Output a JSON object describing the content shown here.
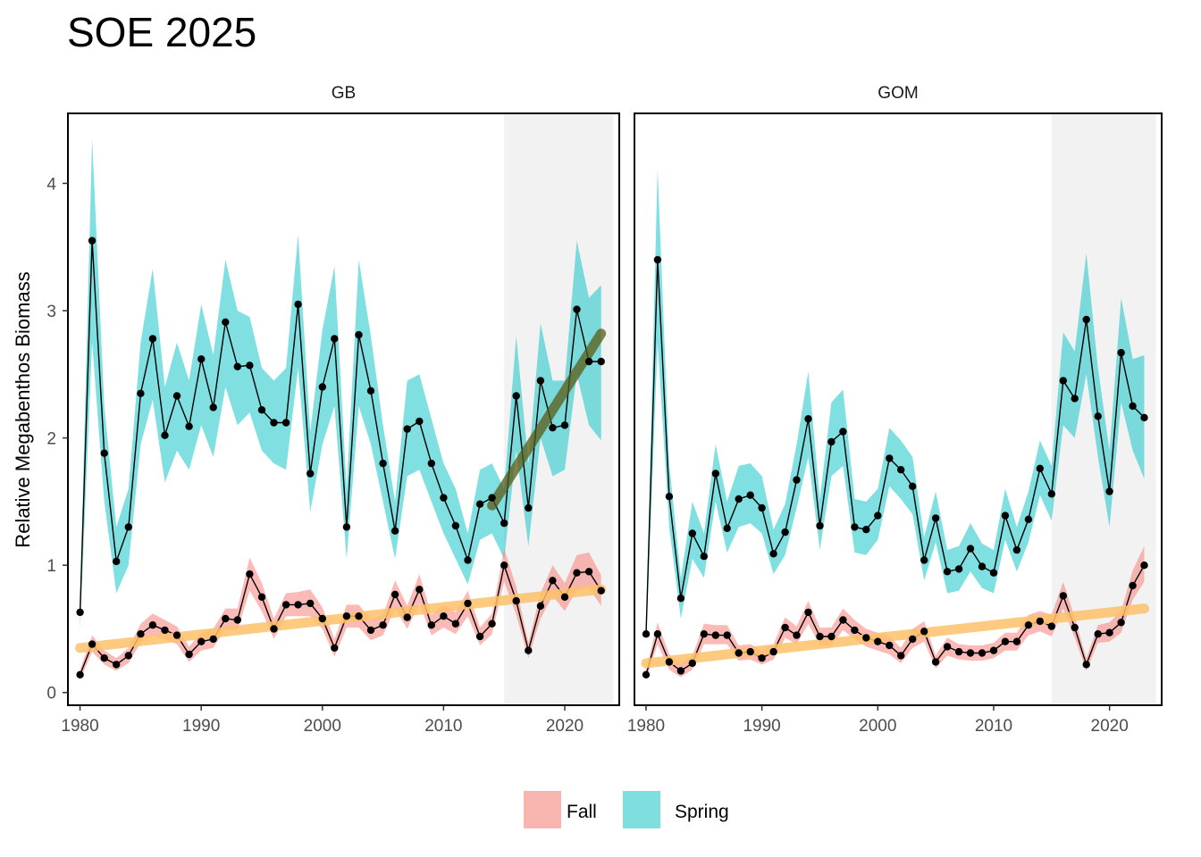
{
  "chart_data": {
    "type": "line",
    "title": "SOE 2025",
    "ylabel": "Relative Megabenthos Biomass",
    "xlabel": "",
    "xlim": [
      1979,
      2024.5
    ],
    "ylim": [
      -0.1,
      4.55
    ],
    "x_ticks": [
      1980,
      1990,
      2000,
      2010,
      2020
    ],
    "y_ticks": [
      0,
      1,
      2,
      3,
      4
    ],
    "grid": false,
    "legend": {
      "position": "bottom",
      "entries": [
        {
          "name": "Fall",
          "color": "#f8b5b0"
        },
        {
          "name": "Spring",
          "color": "#7fdfdf"
        }
      ]
    },
    "colors": {
      "fall_band": "#f8766d",
      "spring_band": "#00bfc4",
      "line": "#000000",
      "trend_increase_fall": "#fdc168",
      "trend_increase_spring": "#5a5a14",
      "shade": "#f2f2f2"
    },
    "shaded_period": [
      2015,
      2024
    ],
    "panels": [
      {
        "strip": "GB",
        "series": [
          {
            "name": "Spring",
            "x": [
              1980,
              1981,
              1982,
              1983,
              1984,
              1985,
              1986,
              1987,
              1988,
              1989,
              1990,
              1991,
              1992,
              1993,
              1994,
              1995,
              1996,
              1997,
              1998,
              1999,
              2000,
              2001,
              2002,
              2003,
              2004,
              2005,
              2006,
              2007,
              2008,
              2009,
              2010,
              2011,
              2012,
              2013,
              2014,
              2015,
              2016,
              2017,
              2018,
              2019,
              2020,
              2021,
              2022,
              2023
            ],
            "values": [
              0.63,
              3.55,
              1.88,
              1.03,
              1.3,
              2.35,
              2.78,
              2.02,
              2.33,
              2.09,
              2.62,
              2.24,
              2.91,
              2.56,
              2.57,
              2.22,
              2.12,
              2.12,
              3.05,
              1.72,
              2.4,
              2.78,
              1.3,
              2.81,
              2.37,
              1.8,
              1.27,
              2.07,
              2.13,
              1.8,
              1.53,
              1.31,
              1.04,
              1.48,
              1.53,
              1.33,
              2.33,
              1.45,
              2.45,
              2.08,
              2.1,
              3.01,
              2.6,
              2.6
            ],
            "lower": [
              0.5,
              2.75,
              1.5,
              0.78,
              1.0,
              1.95,
              2.3,
              1.65,
              1.9,
              1.75,
              2.1,
              1.85,
              2.4,
              2.1,
              2.2,
              1.9,
              1.8,
              1.75,
              2.55,
              1.42,
              1.95,
              2.25,
              1.05,
              2.25,
              1.95,
              1.5,
              1.05,
              1.7,
              1.75,
              1.5,
              1.25,
              1.05,
              0.85,
              1.2,
              1.25,
              1.05,
              1.9,
              1.15,
              2.0,
              1.7,
              1.75,
              2.5,
              2.1,
              1.98
            ],
            "upper": [
              0.75,
              4.35,
              2.25,
              1.3,
              1.6,
              2.75,
              3.33,
              2.4,
              2.75,
              2.45,
              3.05,
              2.65,
              3.4,
              3.0,
              2.95,
              2.55,
              2.45,
              2.55,
              3.6,
              2.05,
              2.85,
              3.35,
              1.6,
              3.4,
              2.8,
              2.1,
              1.5,
              2.45,
              2.5,
              2.15,
              1.8,
              1.6,
              1.25,
              1.75,
              1.8,
              1.6,
              2.8,
              1.8,
              2.9,
              2.45,
              2.45,
              3.55,
              3.1,
              3.2
            ],
            "trend": {
              "x": [
                2014,
                2023
              ],
              "y": [
                1.47,
                2.82
              ]
            }
          },
          {
            "name": "Fall",
            "x": [
              1980,
              1981,
              1982,
              1983,
              1984,
              1985,
              1986,
              1987,
              1988,
              1989,
              1990,
              1991,
              1992,
              1993,
              1994,
              1995,
              1996,
              1997,
              1998,
              1999,
              2000,
              2001,
              2002,
              2003,
              2004,
              2005,
              2006,
              2007,
              2008,
              2009,
              2010,
              2011,
              2012,
              2013,
              2014,
              2015,
              2016,
              2017,
              2018,
              2019,
              2020,
              2021,
              2022,
              2023
            ],
            "values": [
              0.14,
              0.38,
              0.27,
              0.22,
              0.29,
              0.46,
              0.53,
              0.49,
              0.45,
              0.3,
              0.4,
              0.42,
              0.58,
              0.57,
              0.93,
              0.75,
              0.5,
              0.69,
              0.69,
              0.7,
              0.58,
              0.35,
              0.6,
              0.6,
              0.49,
              0.53,
              0.77,
              0.59,
              0.81,
              0.53,
              0.6,
              0.54,
              0.7,
              0.44,
              0.54,
              1.0,
              0.72,
              0.33,
              0.68,
              0.88,
              0.75,
              0.94,
              0.95,
              0.8
            ],
            "lower": [
              0.1,
              0.32,
              0.22,
              0.17,
              0.23,
              0.39,
              0.45,
              0.42,
              0.38,
              0.24,
              0.33,
              0.35,
              0.5,
              0.49,
              0.8,
              0.64,
              0.42,
              0.6,
              0.6,
              0.6,
              0.5,
              0.28,
              0.51,
              0.51,
              0.41,
              0.45,
              0.66,
              0.5,
              0.7,
              0.45,
              0.51,
              0.46,
              0.6,
              0.37,
              0.46,
              0.87,
              0.61,
              0.27,
              0.58,
              0.76,
              0.64,
              0.81,
              0.82,
              0.68
            ],
            "upper": [
              0.18,
              0.45,
              0.33,
              0.27,
              0.35,
              0.54,
              0.62,
              0.57,
              0.52,
              0.36,
              0.47,
              0.5,
              0.66,
              0.66,
              1.06,
              0.86,
              0.58,
              0.78,
              0.79,
              0.81,
              0.67,
              0.42,
              0.69,
              0.69,
              0.57,
              0.61,
              0.88,
              0.68,
              0.93,
              0.61,
              0.69,
              0.63,
              0.8,
              0.51,
              0.62,
              1.13,
              0.83,
              0.39,
              0.78,
              1.0,
              0.86,
              1.08,
              1.1,
              0.92
            ],
            "trend": {
              "x": [
                1980,
                2023
              ],
              "y": [
                0.35,
                0.81
              ]
            }
          }
        ]
      },
      {
        "strip": "GOM",
        "series": [
          {
            "name": "Spring",
            "x": [
              1980,
              1981,
              1982,
              1983,
              1984,
              1985,
              1986,
              1987,
              1988,
              1989,
              1990,
              1991,
              1992,
              1993,
              1994,
              1995,
              1996,
              1997,
              1998,
              1999,
              2000,
              2001,
              2002,
              2003,
              2004,
              2005,
              2006,
              2007,
              2008,
              2009,
              2010,
              2011,
              2012,
              2013,
              2014,
              2015,
              2016,
              2017,
              2018,
              2019,
              2020,
              2021,
              2022,
              2023
            ],
            "values": [
              0.46,
              3.4,
              1.54,
              0.74,
              1.25,
              1.07,
              1.72,
              1.29,
              1.52,
              1.55,
              1.45,
              1.09,
              1.26,
              1.67,
              2.15,
              1.31,
              1.97,
              2.05,
              1.3,
              1.28,
              1.39,
              1.84,
              1.75,
              1.62,
              1.04,
              1.37,
              0.95,
              0.97,
              1.13,
              0.99,
              0.94,
              1.39,
              1.12,
              1.36,
              1.76,
              1.56,
              2.45,
              2.31,
              2.93,
              2.17,
              1.58,
              2.67,
              2.25,
              2.16
            ],
            "lower": [
              0.38,
              2.75,
              1.3,
              0.58,
              1.05,
              0.9,
              1.5,
              1.1,
              1.3,
              1.33,
              1.25,
              0.93,
              1.08,
              1.45,
              1.85,
              1.12,
              1.7,
              1.78,
              1.1,
              1.08,
              1.2,
              1.62,
              1.52,
              1.4,
              0.88,
              1.18,
              0.78,
              0.8,
              0.95,
              0.82,
              0.78,
              1.2,
              0.95,
              1.18,
              1.55,
              1.35,
              2.1,
              2.0,
              2.5,
              1.85,
              1.3,
              2.28,
              1.9,
              1.68
            ],
            "upper": [
              0.55,
              4.12,
              1.8,
              0.9,
              1.5,
              1.25,
              1.95,
              1.5,
              1.78,
              1.8,
              1.7,
              1.28,
              1.48,
              1.95,
              2.52,
              1.52,
              2.28,
              2.38,
              1.52,
              1.5,
              1.6,
              2.08,
              1.98,
              1.85,
              1.22,
              1.58,
              1.12,
              1.15,
              1.33,
              1.17,
              1.12,
              1.6,
              1.3,
              1.58,
              1.98,
              1.78,
              2.83,
              2.68,
              3.45,
              2.55,
              1.9,
              3.1,
              2.62,
              2.65
            ],
            "trend": null
          },
          {
            "name": "Fall",
            "x": [
              1980,
              1981,
              1982,
              1983,
              1984,
              1985,
              1986,
              1987,
              1988,
              1989,
              1990,
              1991,
              1992,
              1993,
              1994,
              1995,
              1996,
              1997,
              1998,
              1999,
              2000,
              2001,
              2002,
              2003,
              2004,
              2005,
              2006,
              2007,
              2008,
              2009,
              2010,
              2011,
              2012,
              2013,
              2014,
              2015,
              2016,
              2017,
              2018,
              2019,
              2020,
              2021,
              2022,
              2023
            ],
            "values": [
              0.14,
              0.46,
              0.24,
              0.17,
              0.23,
              0.46,
              0.45,
              0.45,
              0.31,
              0.32,
              0.27,
              0.32,
              0.51,
              0.45,
              0.63,
              0.44,
              0.44,
              0.57,
              0.49,
              0.43,
              0.4,
              0.37,
              0.29,
              0.42,
              0.48,
              0.24,
              0.36,
              0.32,
              0.31,
              0.31,
              0.33,
              0.4,
              0.4,
              0.53,
              0.56,
              0.52,
              0.76,
              0.51,
              0.22,
              0.46,
              0.47,
              0.55,
              0.84,
              1.0
            ],
            "lower": [
              0.1,
              0.38,
              0.18,
              0.12,
              0.18,
              0.38,
              0.38,
              0.38,
              0.25,
              0.26,
              0.22,
              0.26,
              0.43,
              0.38,
              0.54,
              0.37,
              0.37,
              0.49,
              0.42,
              0.36,
              0.33,
              0.3,
              0.23,
              0.35,
              0.4,
              0.19,
              0.29,
              0.26,
              0.25,
              0.25,
              0.27,
              0.33,
              0.33,
              0.45,
              0.48,
              0.44,
              0.66,
              0.43,
              0.17,
              0.39,
              0.4,
              0.47,
              0.73,
              0.87
            ],
            "upper": [
              0.18,
              0.55,
              0.3,
              0.22,
              0.29,
              0.54,
              0.53,
              0.53,
              0.37,
              0.38,
              0.33,
              0.38,
              0.59,
              0.52,
              0.72,
              0.51,
              0.51,
              0.66,
              0.57,
              0.5,
              0.47,
              0.44,
              0.35,
              0.5,
              0.56,
              0.29,
              0.43,
              0.38,
              0.37,
              0.37,
              0.39,
              0.47,
              0.47,
              0.61,
              0.64,
              0.61,
              0.87,
              0.59,
              0.27,
              0.53,
              0.55,
              0.64,
              0.96,
              1.15
            ],
            "trend": {
              "x": [
                1980,
                2023
              ],
              "y": [
                0.23,
                0.66
              ]
            }
          }
        ]
      }
    ]
  }
}
